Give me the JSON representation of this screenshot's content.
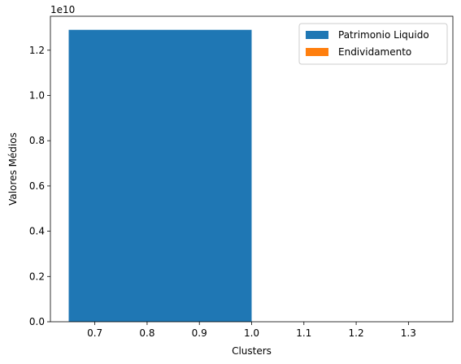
{
  "chart_data": {
    "type": "bar",
    "xlabel": "Clusters",
    "ylabel": "Valores Médios",
    "y_offset_text": "1e10",
    "xlim": [
      0.615,
      1.385
    ],
    "ylim": [
      0,
      13.5
    ],
    "x_ticks": [
      0.7,
      0.8,
      0.9,
      1.0,
      1.1,
      1.2,
      1.3
    ],
    "x_tick_labels": [
      "0.7",
      "0.8",
      "0.9",
      "1.0",
      "1.1",
      "1.2",
      "1.3"
    ],
    "y_ticks": [
      0,
      2,
      4,
      6,
      8,
      10,
      12
    ],
    "y_tick_labels": [
      "0.0",
      "0.2",
      "0.4",
      "0.6",
      "0.8",
      "1.0",
      "1.2"
    ],
    "grid": false,
    "legend_position": "top-right",
    "bar_width": 0.35,
    "series": [
      {
        "name": "Patrimonio Liquido",
        "color": "#1f77b4",
        "x": [
          0.825
        ],
        "values": [
          12.9
        ]
      },
      {
        "name": "Endividamento",
        "color": "#ff7f0e",
        "x": [
          1.175
        ],
        "values": [
          0.0
        ]
      }
    ]
  }
}
